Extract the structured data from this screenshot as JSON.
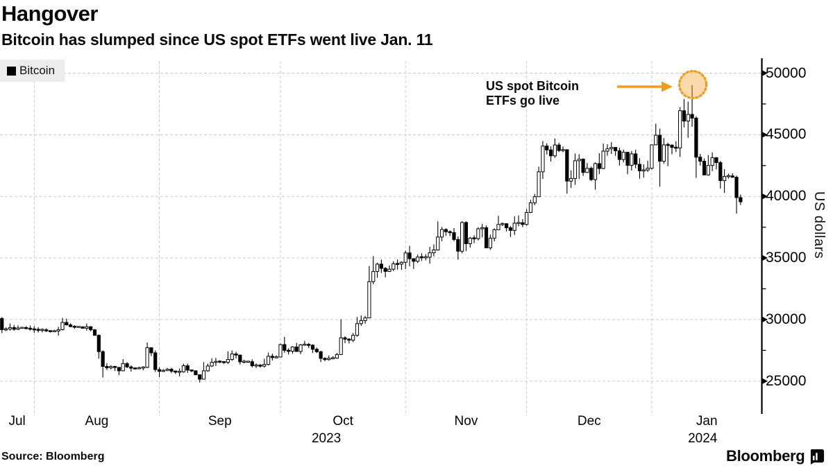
{
  "header": {
    "title": "Hangover",
    "subtitle": "Bitcoin has slumped since US spot ETFs went live Jan. 11"
  },
  "legend": {
    "series_label": "Bitcoin",
    "swatch_color": "#000000",
    "background": "#ececec"
  },
  "annotation": {
    "text_line1": "US spot Bitcoin",
    "text_line2": "ETFs go live",
    "arrow_color": "#f39b1c",
    "circle_border_color": "#f09d1f",
    "circle_fill": "rgba(247,170,66,0.45)"
  },
  "y_axis": {
    "title": "US dollars",
    "tick_values": [
      50000,
      45000,
      40000,
      35000,
      30000,
      25000
    ],
    "minor_tick_step": 2500
  },
  "x_axis": {
    "month_labels": [
      "Jul",
      "Aug",
      "Sep",
      "Oct",
      "Nov",
      "Dec",
      "Jan"
    ],
    "year_labels": [
      {
        "text": "2023",
        "month_index": 3
      },
      {
        "text": "2024",
        "month_index": 6
      }
    ]
  },
  "footer": {
    "source": "Source:  Bloomberg",
    "brand": "Bloomberg"
  },
  "chart_data": {
    "type": "candlestick",
    "title": "Hangover",
    "series_name": "Bitcoin",
    "ylabel": "US dollars",
    "ylim": [
      22500,
      51000
    ],
    "yticks": [
      25000,
      30000,
      35000,
      40000,
      45000,
      50000
    ],
    "x_range": [
      "2023-07-23",
      "2024-01-23"
    ],
    "grid": "dashed",
    "legend_position": "top-left",
    "highlight": {
      "date": "2024-01-11",
      "note": "US spot Bitcoin ETFs go live",
      "price_high": 49020
    },
    "candles": [
      [
        "2023-07-23",
        30080,
        30350,
        29900,
        30090
      ],
      [
        "2023-07-24",
        30090,
        30200,
        28900,
        29180
      ],
      [
        "2023-07-25",
        29180,
        29370,
        29060,
        29230
      ],
      [
        "2023-07-26",
        29230,
        29680,
        29100,
        29350
      ],
      [
        "2023-07-27",
        29350,
        29560,
        29090,
        29210
      ],
      [
        "2023-07-28",
        29210,
        29530,
        29150,
        29320
      ],
      [
        "2023-07-29",
        29320,
        29390,
        29270,
        29340
      ],
      [
        "2023-07-30",
        29340,
        29450,
        29210,
        29280
      ],
      [
        "2023-07-31",
        29280,
        29520,
        29110,
        29230
      ],
      [
        "2023-08-01",
        29230,
        29460,
        28920,
        29180
      ],
      [
        "2023-08-02",
        29180,
        29380,
        28950,
        29150
      ],
      [
        "2023-08-03",
        29150,
        29290,
        28960,
        29170
      ],
      [
        "2023-08-04",
        29170,
        29300,
        28990,
        29080
      ],
      [
        "2023-08-05",
        29080,
        29120,
        28950,
        29040
      ],
      [
        "2023-08-06",
        29040,
        29170,
        28980,
        29070
      ],
      [
        "2023-08-07",
        29070,
        29410,
        28700,
        29180
      ],
      [
        "2023-08-08",
        29180,
        30130,
        29110,
        29770
      ],
      [
        "2023-08-09",
        29770,
        30080,
        29520,
        29570
      ],
      [
        "2023-08-10",
        29570,
        29710,
        29370,
        29430
      ],
      [
        "2023-08-11",
        29430,
        29540,
        29250,
        29400
      ],
      [
        "2023-08-12",
        29400,
        29450,
        29320,
        29410
      ],
      [
        "2023-08-13",
        29410,
        29450,
        29270,
        29290
      ],
      [
        "2023-08-14",
        29290,
        29680,
        29100,
        29420
      ],
      [
        "2023-08-15",
        29420,
        29470,
        29050,
        29170
      ],
      [
        "2023-08-16",
        29170,
        29230,
        28700,
        28720
      ],
      [
        "2023-08-17",
        28720,
        28790,
        26830,
        27400
      ],
      [
        "2023-08-18",
        27400,
        27500,
        25300,
        26200
      ],
      [
        "2023-08-19",
        26200,
        26460,
        25900,
        26080
      ],
      [
        "2023-08-20",
        26080,
        26290,
        25950,
        26190
      ],
      [
        "2023-08-21",
        26190,
        26240,
        25830,
        26120
      ],
      [
        "2023-08-22",
        26120,
        26140,
        25500,
        25840
      ],
      [
        "2023-08-23",
        25840,
        26790,
        25810,
        26430
      ],
      [
        "2023-08-24",
        26430,
        26550,
        26050,
        26160
      ],
      [
        "2023-08-25",
        26160,
        26290,
        25780,
        26050
      ],
      [
        "2023-08-26",
        26050,
        26120,
        25970,
        26010
      ],
      [
        "2023-08-27",
        26010,
        26180,
        25960,
        26090
      ],
      [
        "2023-08-28",
        26090,
        26210,
        25880,
        26120
      ],
      [
        "2023-08-29",
        26120,
        28140,
        26060,
        27720
      ],
      [
        "2023-08-30",
        27720,
        27740,
        27040,
        27300
      ],
      [
        "2023-08-31",
        27300,
        27490,
        25750,
        25940
      ],
      [
        "2023-09-01",
        25940,
        26130,
        25330,
        25800
      ],
      [
        "2023-09-02",
        25800,
        25970,
        25750,
        25870
      ],
      [
        "2023-09-03",
        25870,
        26070,
        25810,
        25970
      ],
      [
        "2023-09-04",
        25970,
        26090,
        25650,
        25810
      ],
      [
        "2023-09-05",
        25810,
        25870,
        25590,
        25750
      ],
      [
        "2023-09-06",
        25750,
        26030,
        25390,
        25760
      ],
      [
        "2023-09-07",
        25760,
        26420,
        25700,
        26250
      ],
      [
        "2023-09-08",
        26250,
        26420,
        25680,
        25900
      ],
      [
        "2023-09-09",
        25900,
        25930,
        25740,
        25840
      ],
      [
        "2023-09-10",
        25840,
        25890,
        25480,
        25520
      ],
      [
        "2023-09-11",
        25520,
        25540,
        24900,
        25160
      ],
      [
        "2023-09-12",
        25160,
        26550,
        25130,
        25840
      ],
      [
        "2023-09-13",
        25840,
        26430,
        25760,
        26230
      ],
      [
        "2023-09-14",
        26230,
        26860,
        26150,
        26530
      ],
      [
        "2023-09-15",
        26530,
        26880,
        26230,
        26600
      ],
      [
        "2023-09-16",
        26600,
        26700,
        26470,
        26570
      ],
      [
        "2023-09-17",
        26570,
        26620,
        26400,
        26530
      ],
      [
        "2023-09-18",
        26530,
        27430,
        26390,
        26760
      ],
      [
        "2023-09-19",
        26760,
        27490,
        26660,
        27210
      ],
      [
        "2023-09-20",
        27210,
        27390,
        26850,
        27120
      ],
      [
        "2023-09-21",
        27120,
        27150,
        26350,
        26570
      ],
      [
        "2023-09-22",
        26570,
        26740,
        26450,
        26580
      ],
      [
        "2023-09-23",
        26580,
        26650,
        26500,
        26580
      ],
      [
        "2023-09-24",
        26580,
        26770,
        26120,
        26250
      ],
      [
        "2023-09-25",
        26250,
        26440,
        26070,
        26300
      ],
      [
        "2023-09-26",
        26300,
        26390,
        26100,
        26220
      ],
      [
        "2023-09-27",
        26220,
        26820,
        26110,
        26360
      ],
      [
        "2023-09-28",
        26360,
        27320,
        26270,
        27020
      ],
      [
        "2023-09-29",
        27020,
        27230,
        26670,
        26910
      ],
      [
        "2023-09-30",
        26910,
        27100,
        26850,
        26960
      ],
      [
        "2023-10-01",
        26960,
        28050,
        26950,
        27970
      ],
      [
        "2023-10-02",
        27970,
        28590,
        27310,
        27500
      ],
      [
        "2023-10-03",
        27500,
        27670,
        27160,
        27430
      ],
      [
        "2023-10-04",
        27430,
        27830,
        27230,
        27780
      ],
      [
        "2023-10-05",
        27780,
        28110,
        27380,
        27410
      ],
      [
        "2023-10-06",
        27410,
        28030,
        27190,
        27950
      ],
      [
        "2023-10-07",
        27950,
        28270,
        27870,
        27970
      ],
      [
        "2023-10-08",
        27970,
        28100,
        27690,
        27920
      ],
      [
        "2023-10-09",
        27920,
        27990,
        27290,
        27590
      ],
      [
        "2023-10-10",
        27590,
        27730,
        27290,
        27390
      ],
      [
        "2023-10-11",
        27390,
        27470,
        26550,
        26850
      ],
      [
        "2023-10-12",
        26850,
        26940,
        26620,
        26750
      ],
      [
        "2023-10-13",
        26750,
        27090,
        26660,
        26860
      ],
      [
        "2023-10-14",
        26860,
        27020,
        26780,
        26870
      ],
      [
        "2023-10-15",
        26870,
        27290,
        26820,
        27160
      ],
      [
        "2023-10-16",
        27160,
        30020,
        27120,
        28520
      ],
      [
        "2023-10-17",
        28520,
        28650,
        28080,
        28410
      ],
      [
        "2023-10-18",
        28410,
        28490,
        28060,
        28330
      ],
      [
        "2023-10-19",
        28330,
        28920,
        28170,
        28720
      ],
      [
        "2023-10-20",
        28720,
        30210,
        28610,
        29670
      ],
      [
        "2023-10-21",
        29670,
        30330,
        29500,
        29920
      ],
      [
        "2023-10-22",
        29920,
        30300,
        29670,
        30140
      ],
      [
        "2023-10-23",
        30140,
        34350,
        30120,
        33080
      ],
      [
        "2023-10-24",
        33080,
        35150,
        32870,
        33900
      ],
      [
        "2023-10-25",
        33900,
        34620,
        33390,
        34500
      ],
      [
        "2023-10-26",
        34500,
        34870,
        33780,
        34160
      ],
      [
        "2023-10-27",
        34160,
        34250,
        33430,
        33910
      ],
      [
        "2023-10-28",
        33910,
        34400,
        33860,
        34090
      ],
      [
        "2023-10-29",
        34090,
        34740,
        33930,
        34530
      ],
      [
        "2023-10-30",
        34530,
        34880,
        34060,
        34500
      ],
      [
        "2023-10-31",
        34500,
        34720,
        34030,
        34650
      ],
      [
        "2023-11-01",
        34650,
        35590,
        34110,
        35410
      ],
      [
        "2023-11-02",
        35410,
        35980,
        34320,
        34940
      ],
      [
        "2023-11-03",
        34940,
        34950,
        34110,
        34730
      ],
      [
        "2023-11-04",
        34730,
        35280,
        34590,
        35070
      ],
      [
        "2023-11-05",
        35070,
        35390,
        34750,
        35050
      ],
      [
        "2023-11-06",
        35050,
        35310,
        34800,
        35060
      ],
      [
        "2023-11-07",
        35060,
        35900,
        34540,
        35420
      ],
      [
        "2023-11-08",
        35420,
        36100,
        35130,
        35650
      ],
      [
        "2023-11-09",
        35650,
        37970,
        35600,
        36700
      ],
      [
        "2023-11-10",
        36700,
        37520,
        36350,
        37310
      ],
      [
        "2023-11-11",
        37310,
        37410,
        36790,
        37130
      ],
      [
        "2023-11-12",
        37130,
        37230,
        36770,
        37060
      ],
      [
        "2023-11-13",
        37060,
        37420,
        36360,
        36500
      ],
      [
        "2023-11-14",
        36500,
        36750,
        34870,
        35550
      ],
      [
        "2023-11-15",
        35550,
        37980,
        35380,
        37880
      ],
      [
        "2023-11-16",
        37880,
        37980,
        35550,
        36160
      ],
      [
        "2023-11-17",
        36160,
        36710,
        35850,
        36610
      ],
      [
        "2023-11-18",
        36610,
        36850,
        36200,
        36570
      ],
      [
        "2023-11-19",
        36570,
        37500,
        36420,
        37370
      ],
      [
        "2023-11-20",
        37370,
        37760,
        36670,
        37460
      ],
      [
        "2023-11-21",
        37460,
        37650,
        35810,
        35820
      ],
      [
        "2023-11-22",
        35820,
        36900,
        35660,
        36600
      ],
      [
        "2023-11-23",
        36600,
        37410,
        36350,
        37290
      ],
      [
        "2023-11-24",
        37290,
        38420,
        37250,
        37720
      ],
      [
        "2023-11-25",
        37720,
        37880,
        37590,
        37780
      ],
      [
        "2023-11-26",
        37780,
        37820,
        37150,
        37450
      ],
      [
        "2023-11-27",
        37450,
        37590,
        36710,
        37240
      ],
      [
        "2023-11-28",
        37240,
        38390,
        36870,
        37820
      ],
      [
        "2023-11-29",
        37820,
        38450,
        37570,
        37860
      ],
      [
        "2023-11-30",
        37860,
        38150,
        37500,
        37720
      ],
      [
        "2023-12-01",
        37720,
        38970,
        37620,
        38690
      ],
      [
        "2023-12-02",
        38690,
        39720,
        38650,
        39470
      ],
      [
        "2023-12-03",
        39470,
        40200,
        39280,
        39970
      ],
      [
        "2023-12-04",
        39970,
        42420,
        39960,
        41990
      ],
      [
        "2023-12-05",
        41990,
        44490,
        41420,
        44080
      ],
      [
        "2023-12-06",
        44080,
        44310,
        43390,
        43770
      ],
      [
        "2023-12-07",
        43770,
        44050,
        42830,
        43290
      ],
      [
        "2023-12-08",
        43290,
        44700,
        43120,
        44170
      ],
      [
        "2023-12-09",
        44170,
        44360,
        43600,
        43720
      ],
      [
        "2023-12-10",
        43720,
        44050,
        43580,
        43790
      ],
      [
        "2023-12-11",
        43790,
        43810,
        40220,
        41240
      ],
      [
        "2023-12-12",
        41240,
        42120,
        40680,
        41450
      ],
      [
        "2023-12-13",
        41450,
        43480,
        40930,
        42890
      ],
      [
        "2023-12-14",
        42890,
        43420,
        41400,
        43020
      ],
      [
        "2023-12-15",
        43020,
        43080,
        41660,
        41940
      ],
      [
        "2023-12-16",
        41940,
        42710,
        41900,
        42280
      ],
      [
        "2023-12-17",
        42280,
        42420,
        41260,
        41360
      ],
      [
        "2023-12-18",
        41360,
        42760,
        40540,
        42660
      ],
      [
        "2023-12-19",
        42660,
        43500,
        41810,
        42260
      ],
      [
        "2023-12-20",
        42260,
        44280,
        42210,
        43670
      ],
      [
        "2023-12-21",
        43670,
        44240,
        43290,
        43860
      ],
      [
        "2023-12-22",
        43860,
        44400,
        43440,
        43970
      ],
      [
        "2023-12-23",
        43970,
        44000,
        43290,
        43700
      ],
      [
        "2023-12-24",
        43700,
        43950,
        42500,
        42990
      ],
      [
        "2023-12-25",
        42990,
        43800,
        42750,
        43580
      ],
      [
        "2023-12-26",
        43580,
        43600,
        41800,
        42520
      ],
      [
        "2023-12-27",
        42520,
        43680,
        42100,
        43450
      ],
      [
        "2023-12-28",
        43450,
        43790,
        42280,
        42600
      ],
      [
        "2023-12-29",
        42600,
        43110,
        41430,
        42070
      ],
      [
        "2023-12-30",
        42070,
        42600,
        41520,
        42140
      ],
      [
        "2023-12-31",
        42140,
        42900,
        41970,
        42280
      ],
      [
        "2024-01-01",
        42280,
        44190,
        42180,
        44180
      ],
      [
        "2024-01-02",
        44180,
        45900,
        44150,
        44960
      ],
      [
        "2024-01-03",
        44960,
        45500,
        40800,
        42850
      ],
      [
        "2024-01-04",
        42850,
        44730,
        42640,
        44180
      ],
      [
        "2024-01-05",
        44180,
        44360,
        42450,
        44160
      ],
      [
        "2024-01-06",
        44160,
        44220,
        43420,
        43970
      ],
      [
        "2024-01-07",
        43970,
        44480,
        43590,
        43930
      ],
      [
        "2024-01-08",
        43930,
        47240,
        43200,
        46950
      ],
      [
        "2024-01-09",
        46950,
        47900,
        45600,
        46110
      ],
      [
        "2024-01-10",
        46110,
        47690,
        44750,
        46650
      ],
      [
        "2024-01-11",
        46650,
        49020,
        45650,
        46350
      ],
      [
        "2024-01-12",
        46350,
        46500,
        41500,
        43180
      ],
      [
        "2024-01-13",
        43180,
        43440,
        42500,
        42850
      ],
      [
        "2024-01-14",
        42850,
        43080,
        41720,
        41740
      ],
      [
        "2024-01-15",
        41740,
        43350,
        41680,
        42510
      ],
      [
        "2024-01-16",
        42510,
        43570,
        42050,
        43140
      ],
      [
        "2024-01-17",
        43140,
        43190,
        42180,
        42740
      ],
      [
        "2024-01-18",
        42740,
        42880,
        40630,
        41280
      ],
      [
        "2024-01-19",
        41280,
        42200,
        40280,
        41620
      ],
      [
        "2024-01-20",
        41620,
        41850,
        41440,
        41660
      ],
      [
        "2024-01-21",
        41660,
        41880,
        41500,
        41550
      ],
      [
        "2024-01-22",
        41550,
        41680,
        38600,
        39900
      ],
      [
        "2024-01-23",
        39900,
        40150,
        39300,
        39560
      ]
    ]
  }
}
